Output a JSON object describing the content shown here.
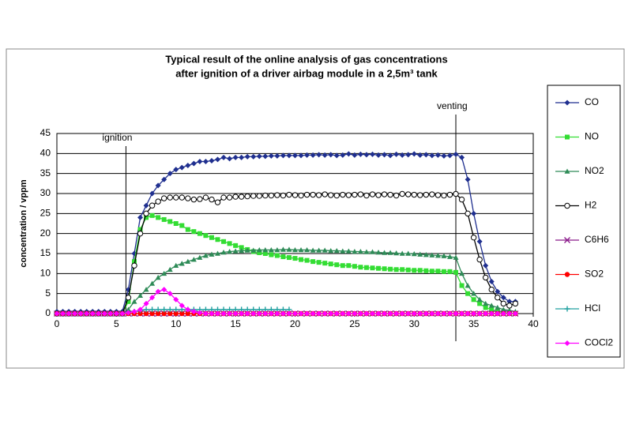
{
  "chart_data": {
    "type": "line",
    "title": "Typical result of the online analysis of gas concentrations",
    "subtitle": "after ignition of a driver airbag module in a 2,5m³ tank",
    "y_label": "concentration / vppm",
    "annotations": [
      {
        "text": "ignition",
        "x": 5.8
      },
      {
        "text": "venting",
        "x": 33.5
      }
    ],
    "xlim": [
      0,
      40
    ],
    "xticks": [
      0,
      5,
      10,
      15,
      20,
      25,
      30,
      35,
      40
    ],
    "ylim": [
      0,
      45
    ],
    "yticks": [
      0,
      5,
      10,
      15,
      20,
      25,
      30,
      35,
      40,
      45
    ],
    "grid": true,
    "legend": "right",
    "x": [
      0,
      0.5,
      1,
      1.5,
      2,
      2.5,
      3,
      3.5,
      4,
      4.5,
      5,
      5.5,
      6,
      6.5,
      7,
      7.5,
      8,
      8.5,
      9,
      9.5,
      10,
      10.5,
      11,
      11.5,
      12,
      12.5,
      13,
      13.5,
      14,
      14.5,
      15,
      15.5,
      16,
      16.5,
      17,
      17.5,
      18,
      18.5,
      19,
      19.5,
      20,
      20.5,
      21,
      21.5,
      22,
      22.5,
      23,
      23.5,
      24,
      24.5,
      25,
      25.5,
      26,
      26.5,
      27,
      27.5,
      28,
      28.5,
      29,
      29.5,
      30,
      30.5,
      31,
      31.5,
      32,
      32.5,
      33,
      33.5,
      34,
      34.5,
      35,
      35.5,
      36,
      36.5,
      37,
      37.5,
      38,
      38.5
    ],
    "series": [
      {
        "name": "CO",
        "color": "#1f2f8f",
        "marker": "diamond",
        "values": [
          0.5,
          0.5,
          0.5,
          0.5,
          0.5,
          0.5,
          0.5,
          0.5,
          0.5,
          0.5,
          0.5,
          0.5,
          6,
          15,
          24,
          27,
          30,
          32,
          33.5,
          35,
          36,
          36.5,
          37,
          37.5,
          38,
          38,
          38.2,
          38.5,
          39,
          38.7,
          39,
          39,
          39.2,
          39.2,
          39.3,
          39.3,
          39.4,
          39.4,
          39.5,
          39.5,
          39.5,
          39.5,
          39.6,
          39.6,
          39.7,
          39.6,
          39.7,
          39.5,
          39.6,
          39.9,
          39.6,
          39.8,
          39.7,
          39.8,
          39.6,
          39.7,
          39.5,
          39.8,
          39.6,
          39.7,
          39.9,
          39.6,
          39.7,
          39.5,
          39.6,
          39.4,
          39.5,
          39.8,
          39,
          33.5,
          25,
          18,
          12,
          8,
          5.5,
          4,
          3,
          3
        ]
      },
      {
        "name": "NO",
        "color": "#33dd33",
        "marker": "square",
        "values": [
          0,
          0,
          0,
          0,
          0,
          0,
          0,
          0,
          0,
          0,
          0,
          0,
          3,
          13,
          21,
          24,
          24.5,
          24,
          23.5,
          23,
          22.5,
          22,
          21,
          20.5,
          20,
          19.5,
          19,
          18.5,
          18,
          17.5,
          17,
          16.5,
          16,
          15.5,
          15.2,
          15,
          14.7,
          14.5,
          14.2,
          14,
          13.8,
          13.5,
          13.3,
          13,
          12.8,
          12.6,
          12.4,
          12.2,
          12,
          12,
          11.8,
          11.6,
          11.5,
          11.4,
          11.3,
          11.2,
          11.1,
          11,
          11,
          10.9,
          10.8,
          10.8,
          10.7,
          10.6,
          10.6,
          10.5,
          10.5,
          10.3,
          7,
          5,
          3.5,
          2.5,
          1.5,
          1,
          0.5,
          0.3,
          0,
          0
        ]
      },
      {
        "name": "NO2",
        "color": "#2e8b57",
        "marker": "triangle",
        "values": [
          0,
          0,
          0,
          0,
          0,
          0,
          0,
          0,
          0,
          0,
          0,
          0,
          1,
          3,
          4.5,
          6,
          7.5,
          9,
          10,
          11,
          12,
          12.5,
          13,
          13.5,
          14,
          14.5,
          14.8,
          15,
          15.3,
          15.5,
          15.6,
          15.7,
          15.8,
          15.8,
          15.9,
          15.9,
          15.9,
          15.9,
          16,
          16,
          15.9,
          15.9,
          15.9,
          15.8,
          15.8,
          15.8,
          15.7,
          15.7,
          15.6,
          15.6,
          15.5,
          15.5,
          15.4,
          15.4,
          15.3,
          15.2,
          15.2,
          15.1,
          15,
          15,
          14.9,
          14.8,
          14.7,
          14.6,
          14.5,
          14.4,
          14.2,
          14,
          10,
          7,
          5,
          3.5,
          2.5,
          2,
          1.5,
          1,
          0.8,
          0.5
        ]
      },
      {
        "name": "H2",
        "color": "#000000",
        "marker": "circle-open",
        "values": [
          0,
          0,
          0,
          0,
          0,
          0,
          0,
          0,
          0,
          0,
          0,
          0,
          4,
          12,
          20,
          25,
          27,
          28,
          28.8,
          29,
          29,
          29,
          28.8,
          28.5,
          28.6,
          29,
          28.5,
          27.8,
          29,
          29,
          29.2,
          29.2,
          29.3,
          29.4,
          29.4,
          29.5,
          29.5,
          29.6,
          29.5,
          29.7,
          29.6,
          29.5,
          29.7,
          29.7,
          29.6,
          29.8,
          29.6,
          29.5,
          29.7,
          29.6,
          29.7,
          29.8,
          29.5,
          29.8,
          29.6,
          29.8,
          29.7,
          29.5,
          29.9,
          29.8,
          29.7,
          29.6,
          29.7,
          29.8,
          29.6,
          29.5,
          29.7,
          29.9,
          28.5,
          25,
          19,
          13.5,
          9,
          6,
          4,
          2.5,
          2,
          2.5
        ]
      },
      {
        "name": "C6H6",
        "color": "#8b1a8b",
        "marker": "x",
        "values": [
          0,
          0,
          0,
          0,
          0,
          0,
          0,
          0,
          0,
          0,
          0,
          0,
          0,
          0,
          0,
          0,
          0,
          0,
          0,
          0,
          0,
          0,
          0,
          0,
          0,
          0,
          0,
          0,
          0,
          0,
          0,
          0,
          0,
          0,
          0,
          0,
          0,
          0,
          0,
          0,
          0,
          0,
          0,
          0,
          0,
          0,
          0,
          0,
          0,
          0,
          0,
          0,
          0,
          0,
          0,
          0,
          0,
          0,
          0,
          0,
          0,
          0,
          0,
          0,
          0,
          0,
          0,
          0,
          0,
          0,
          0,
          0,
          0,
          0,
          0,
          0,
          0,
          0
        ]
      },
      {
        "name": "SO2",
        "color": "#ff0000",
        "marker": "circle",
        "values": [
          0,
          0,
          0,
          0,
          0,
          0,
          0,
          0,
          0,
          0,
          0,
          0,
          0,
          0,
          0,
          0,
          0,
          0,
          0,
          0,
          0,
          0,
          0,
          0,
          0,
          0,
          0,
          0,
          0,
          0,
          0,
          0,
          0,
          0,
          0,
          0,
          0,
          0,
          0,
          0,
          0,
          0,
          0,
          0,
          0,
          0,
          0,
          0,
          0,
          0,
          0,
          0,
          0,
          0,
          0,
          0,
          0,
          0,
          0,
          0,
          0,
          0,
          0,
          0,
          0,
          0,
          0,
          0,
          0,
          0,
          0,
          0,
          0,
          0,
          0,
          0,
          0,
          0
        ]
      },
      {
        "name": "HCl",
        "color": "#20a0a0",
        "marker": "plus",
        "values": [
          0,
          0,
          0,
          0,
          0,
          0,
          0,
          0,
          0,
          0,
          0,
          0,
          0.3,
          0.5,
          0.8,
          1,
          1,
          1,
          1,
          1,
          1,
          1,
          1,
          1,
          1,
          1,
          1,
          1,
          1,
          1,
          1,
          1,
          1,
          1,
          1,
          1,
          1,
          1,
          1,
          1,
          null,
          null,
          null,
          null,
          null,
          null,
          null,
          null,
          null,
          null,
          null,
          null,
          null,
          null,
          null,
          null,
          null,
          null,
          null,
          null,
          null,
          null,
          null,
          null,
          null,
          null,
          null,
          null,
          null,
          null,
          null,
          null,
          null,
          null,
          null,
          null,
          null,
          null
        ]
      },
      {
        "name": "COCl2",
        "color": "#ff00ff",
        "marker": "diamond",
        "values": [
          0,
          0,
          0,
          0,
          0,
          0,
          0,
          0,
          0,
          0,
          0,
          0,
          0.2,
          0.5,
          1,
          2.5,
          4,
          5.5,
          6,
          5,
          3.5,
          2,
          1,
          0.5,
          0.2,
          0,
          0,
          0,
          0,
          0,
          0,
          0,
          0,
          0,
          0,
          0,
          0,
          0,
          0,
          0,
          0,
          0,
          0,
          0,
          0,
          0,
          0,
          0,
          0,
          0,
          0,
          0,
          0,
          0,
          0,
          0,
          0,
          0,
          0,
          0,
          0,
          0,
          0,
          0,
          0,
          0,
          0,
          0,
          0,
          0,
          0,
          0,
          0,
          0,
          0,
          0,
          0,
          0
        ]
      }
    ]
  }
}
